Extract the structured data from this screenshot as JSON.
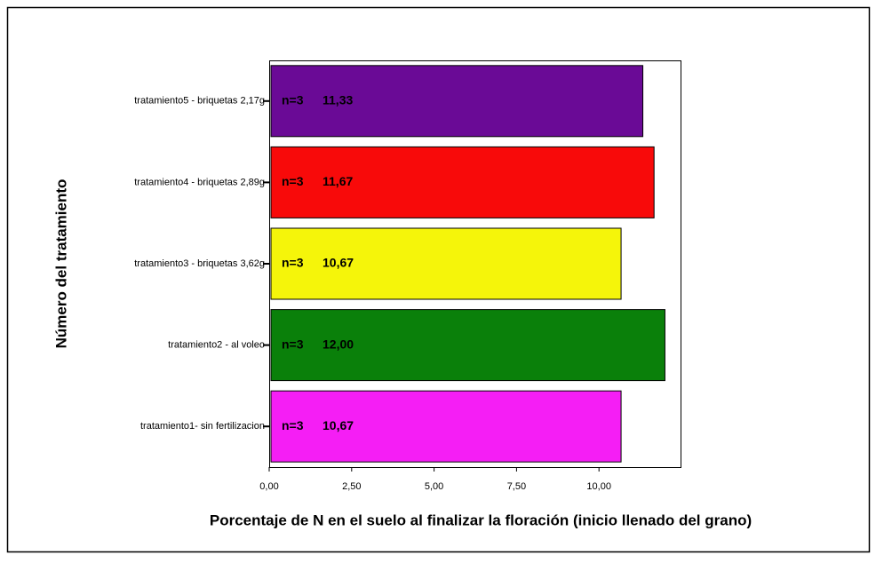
{
  "chart_data": {
    "type": "barh",
    "categories": [
      "tratamiento5 - briquetas 2,17g",
      "tratamiento4 - briquetas 2,89g",
      "tratamiento3 - briquetas 3,62g",
      "tratamiento2 - al voleo",
      "tratamiento1- sin fertilizacion"
    ],
    "values": [
      11.33,
      11.67,
      10.67,
      12.0,
      10.67
    ],
    "value_labels": [
      "11,33",
      "11,67",
      "10,67",
      "12,00",
      "10,67"
    ],
    "n_labels": [
      "n=3",
      "n=3",
      "n=3",
      "n=3",
      "n=3"
    ],
    "colors": [
      "#6a0a96",
      "#f80a0a",
      "#f5f50a",
      "#0a800a",
      "#f51ef5"
    ],
    "xlim": [
      0,
      12.5
    ],
    "xticks": [
      {
        "value": 0,
        "label": "0,00"
      },
      {
        "value": 2.5,
        "label": "2,50"
      },
      {
        "value": 5,
        "label": "5,00"
      },
      {
        "value": 7.5,
        "label": "7,50"
      },
      {
        "value": 10,
        "label": "10,00"
      }
    ],
    "xlabel": "Porcentaje de N en el suelo al finalizar la floración (inicio llenado del grano)",
    "ylabel": "Número del tratamiento"
  }
}
